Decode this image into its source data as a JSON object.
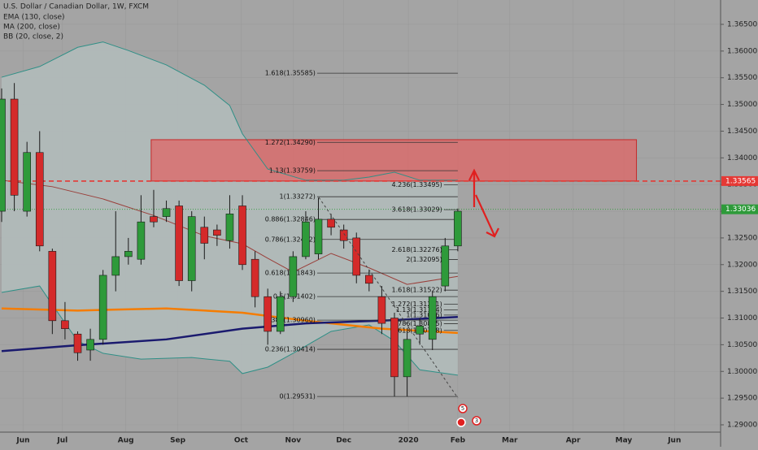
{
  "chart_data": {
    "type": "candlestick",
    "title": "U.S. Dollar / Canadian Dollar, 1W, FXCM",
    "categories": [
      null,
      null,
      null,
      null,
      null,
      null,
      null,
      null,
      null,
      null,
      null,
      null,
      null,
      null,
      null,
      null,
      null,
      null,
      null,
      null,
      null,
      null,
      null,
      null,
      null,
      null,
      null,
      null,
      null,
      null,
      null,
      null,
      null,
      null,
      null,
      null,
      null
    ],
    "open": [
      1.33,
      1.351,
      1.33,
      1.341,
      1.3225,
      1.3095,
      1.307,
      1.304,
      1.306,
      1.318,
      1.3215,
      1.321,
      1.329,
      1.329,
      1.331,
      1.317,
      1.327,
      1.3265,
      1.3245,
      1.331,
      1.321,
      1.314,
      1.3075,
      1.314,
      1.3215,
      1.322,
      1.3285,
      1.3265,
      1.325,
      1.318,
      1.314,
      1.31,
      1.299,
      1.307,
      1.306,
      1.316,
      1.3235
    ],
    "high": [
      1.353,
      1.354,
      1.343,
      1.345,
      1.323,
      1.313,
      1.3075,
      1.308,
      1.319,
      1.33,
      1.325,
      1.333,
      1.334,
      1.332,
      1.332,
      1.33,
      1.329,
      1.3275,
      1.333,
      1.333,
      1.3225,
      1.3155,
      1.315,
      1.3225,
      1.33,
      1.3325,
      1.3295,
      1.3275,
      1.326,
      1.319,
      1.316,
      1.311,
      1.3075,
      1.31,
      1.315,
      1.325,
      1.3305
    ],
    "low": [
      1.328,
      1.33,
      1.329,
      1.3225,
      1.307,
      1.306,
      1.302,
      1.302,
      1.305,
      1.315,
      1.32,
      1.32,
      1.327,
      1.328,
      1.316,
      1.315,
      1.321,
      1.3235,
      1.323,
      1.319,
      1.312,
      1.305,
      1.307,
      1.313,
      1.321,
      1.321,
      1.3255,
      1.323,
      1.3165,
      1.315,
      1.307,
      1.2953,
      1.2953,
      1.305,
      1.304,
      1.315,
      1.3225
    ],
    "close": [
      1.351,
      1.333,
      1.341,
      1.3235,
      1.3095,
      1.308,
      1.3035,
      1.306,
      1.318,
      1.3215,
      1.3225,
      1.328,
      1.328,
      1.3305,
      1.317,
      1.329,
      1.324,
      1.3255,
      1.3295,
      1.32,
      1.314,
      1.3075,
      1.314,
      1.3215,
      1.328,
      1.3285,
      1.327,
      1.3245,
      1.318,
      1.3165,
      1.309,
      1.299,
      1.306,
      1.3085,
      1.314,
      1.3235,
      1.33
    ],
    "up_color": "#2e9a3a",
    "down_color": "#d42a2a",
    "series": [
      {
        "name": "EMA (130, close)",
        "color": "#f57c00",
        "width": 2.5,
        "x": [
          0,
          6,
          13,
          19,
          24,
          30,
          36
        ],
        "values": [
          1.3118,
          1.3114,
          1.3118,
          1.311,
          1.3095,
          1.308,
          1.3072
        ]
      },
      {
        "name": "MA (200, close)",
        "color": "#1a1a6e",
        "width": 2.5,
        "x": [
          0,
          6,
          13,
          19,
          24,
          30,
          36
        ],
        "values": [
          1.3038,
          1.3049,
          1.306,
          1.308,
          1.309,
          1.3095,
          1.3102
        ]
      },
      {
        "name": "BB (20, close, 2)",
        "color": "#9a3f3a",
        "width": 1,
        "x": [
          0,
          4,
          8,
          12,
          16,
          19,
          21,
          23,
          26,
          29,
          32,
          36
        ],
        "values": [
          1.3358,
          1.3346,
          1.3323,
          1.3292,
          1.3254,
          1.3239,
          1.3212,
          1.3186,
          1.3221,
          1.3194,
          1.3163,
          1.3178
        ]
      }
    ],
    "bands": {
      "color": "#2f8f86",
      "fill": "#b3bdbc",
      "upper": {
        "x": [
          0,
          3,
          6,
          8,
          10,
          13,
          16,
          18,
          19,
          21,
          24,
          27,
          29,
          31,
          33,
          36
        ],
        "values": [
          1.3551,
          1.3571,
          1.3607,
          1.3617,
          1.3601,
          1.3574,
          1.3536,
          1.3498,
          1.3445,
          1.3379,
          1.3358,
          1.3358,
          1.3364,
          1.3373,
          1.3358,
          1.3358
        ]
      },
      "lower": {
        "x": [
          0,
          3,
          4,
          6,
          8,
          11,
          15,
          18,
          19,
          21,
          23,
          26,
          29,
          31,
          33,
          36
        ],
        "values": [
          1.3148,
          1.316,
          1.3125,
          1.3057,
          1.3034,
          1.3023,
          1.3026,
          1.3019,
          1.2996,
          1.3008,
          1.3034,
          1.3075,
          1.3087,
          1.3057,
          1.3003,
          1.2993
        ]
      }
    },
    "zone": {
      "x": [
        11.8,
        50.1
      ],
      "y": [
        1.33565,
        1.3434
      ],
      "color": "#e06666"
    },
    "price_lines": [
      {
        "value": 1.33565,
        "label": "1.33565",
        "color": "#e53935",
        "dashed": true
      },
      {
        "value": 1.33036,
        "label": "1.33036",
        "color": "#2e9a3a",
        "dashed": false
      }
    ],
    "fib_sets": [
      {
        "x": [
          24.9,
          36
        ],
        "levels": [
          {
            "value": 1.35585,
            "label": "1.618(1.35585)"
          },
          {
            "value": 1.3429,
            "label": "1.272(1.34290)"
          },
          {
            "value": 1.33759,
            "label": "1.13(1.33759)"
          },
          {
            "value": 1.33272,
            "label": "1(1.33272)"
          },
          {
            "value": 1.32846,
            "label": "0.886(1.32846)"
          },
          {
            "value": 1.32472,
            "label": "0.786(1.32472)"
          },
          {
            "value": 1.31843,
            "label": "0.618(1.31843)"
          },
          {
            "value": 1.31402,
            "label": "0.5(1.31402)"
          },
          {
            "value": 1.3096,
            "label": "0.382(1.30960)"
          },
          {
            "value": 1.30414,
            "label": "0.236(1.30414)"
          },
          {
            "value": 1.29531,
            "label": "0(1.29531)"
          }
        ]
      },
      {
        "x": [
          34.9,
          36
        ],
        "levels": [
          {
            "value": 1.33495,
            "label": "4.236(1.33495)"
          },
          {
            "value": 1.33029,
            "label": "3.618(1.33029)"
          },
          {
            "value": 1.32276,
            "label": "2.618(1.32276)"
          },
          {
            "value": 1.32095,
            "label": "2(1.32095)"
          },
          {
            "value": 1.31522,
            "label": "1.618(1.31522)"
          },
          {
            "value": 1.31261,
            "label": "1.272(1.31261)"
          },
          {
            "value": 1.31154,
            "label": "1.13(1.31154)"
          },
          {
            "value": 1.31056,
            "label": "1(1.31056)"
          },
          {
            "value": 1.30895,
            "label": "0.786(1.30895)"
          },
          {
            "value": 1.30768,
            "label": "0.618(1.30768)"
          }
        ]
      }
    ],
    "events": [
      "5",
      "3"
    ],
    "xlim": [
      -0.13,
      56.74
    ],
    "ylim": [
      1.28863,
      1.36956
    ],
    "xticks": [
      {
        "value": 1.7,
        "label": "Jun"
      },
      {
        "value": 4.8,
        "label": "Jul"
      },
      {
        "value": 9.8,
        "label": "Aug"
      },
      {
        "value": 13.9,
        "label": "Sep"
      },
      {
        "value": 18.9,
        "label": "Oct"
      },
      {
        "value": 23,
        "label": "Nov"
      },
      {
        "value": 27,
        "label": "Dec"
      },
      {
        "value": 32.1,
        "label": "2020"
      },
      {
        "value": 36,
        "label": "Feb"
      },
      {
        "value": 40.1,
        "label": "Mar"
      },
      {
        "value": 45.1,
        "label": "Apr"
      },
      {
        "value": 49.1,
        "label": "May"
      },
      {
        "value": 53.1,
        "label": "Jun"
      }
    ],
    "yticks": [
      {
        "value": 1.29,
        "label": "1.29000"
      },
      {
        "value": 1.295,
        "label": "1.29500"
      },
      {
        "value": 1.3,
        "label": "1.30000"
      },
      {
        "value": 1.305,
        "label": "1.30500"
      },
      {
        "value": 1.31,
        "label": "1.31000"
      },
      {
        "value": 1.315,
        "label": "1.31500"
      },
      {
        "value": 1.32,
        "label": "1.32000"
      },
      {
        "value": 1.325,
        "label": "1.32500"
      },
      {
        "value": 1.33,
        "label": "1.33000"
      },
      {
        "value": 1.335,
        "label": "1.33500"
      },
      {
        "value": 1.34,
        "label": "1.34000"
      },
      {
        "value": 1.345,
        "label": "1.34500"
      },
      {
        "value": 1.35,
        "label": "1.35000"
      },
      {
        "value": 1.355,
        "label": "1.35500"
      },
      {
        "value": 1.36,
        "label": "1.36000"
      },
      {
        "value": 1.365,
        "label": "1.36500"
      }
    ],
    "grid": true
  }
}
